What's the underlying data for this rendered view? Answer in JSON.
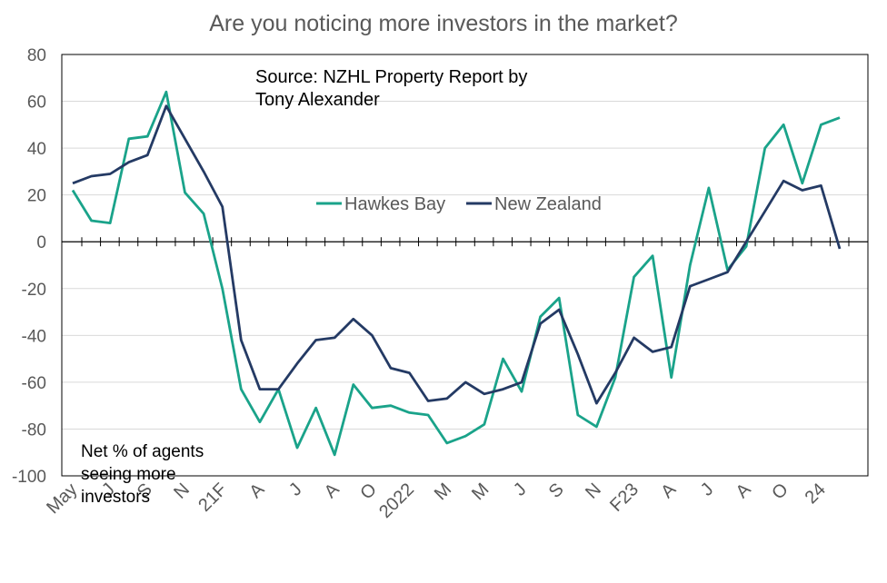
{
  "chart_data": {
    "type": "line",
    "title": "Are you noticing more investors in the market?",
    "source_note": [
      "Source: NZHL Property Report by",
      "Tony Alexander"
    ],
    "ylabel_note": [
      "Net % of agents",
      "seeing more",
      "investors"
    ],
    "ylim": [
      -100,
      80
    ],
    "y_ticks": [
      80,
      60,
      40,
      20,
      0,
      -20,
      -40,
      -60,
      -80,
      -100
    ],
    "x_tick_labels": [
      "May",
      "J",
      "S",
      "N",
      "21F",
      "A",
      "J",
      "A",
      "O",
      "2022",
      "M",
      "M",
      "J",
      "S",
      "N",
      "F23",
      "A",
      "J",
      "A",
      "O",
      "24"
    ],
    "x_tick_label_index": [
      0,
      2,
      4,
      6,
      8,
      10,
      12,
      14,
      16,
      18,
      20,
      22,
      24,
      26,
      28,
      30,
      32,
      34,
      36,
      38,
      40
    ],
    "legend": {
      "position": "center",
      "entries": [
        "Hawkes Bay",
        "New Zealand"
      ]
    },
    "series": [
      {
        "name": "Hawkes Bay",
        "color": "#1aa38a",
        "values": [
          22,
          9,
          8,
          44,
          45,
          64,
          21,
          12,
          -20,
          -63,
          -77,
          -63,
          -88,
          -71,
          -91,
          -61,
          -71,
          -70,
          -73,
          -74,
          -86,
          -83,
          -78,
          -50,
          -64,
          -32,
          -24,
          -74,
          -79,
          -58,
          -15,
          -6,
          -58,
          -10,
          23,
          -12,
          -2,
          40,
          50,
          25,
          50,
          53
        ]
      },
      {
        "name": "New Zealand",
        "color": "#243a64",
        "values": [
          25,
          28,
          29,
          34,
          37,
          58,
          44,
          30,
          15,
          -42,
          -63,
          -63,
          -52,
          -42,
          -41,
          -33,
          -40,
          -54,
          -56,
          -68,
          -67,
          -60,
          -65,
          -63,
          -60,
          -35,
          -29,
          -48,
          -69,
          -56,
          -41,
          -47,
          -45,
          -19,
          -16,
          -13,
          0,
          13,
          26,
          22,
          24,
          -3
        ]
      }
    ],
    "grid": true
  }
}
